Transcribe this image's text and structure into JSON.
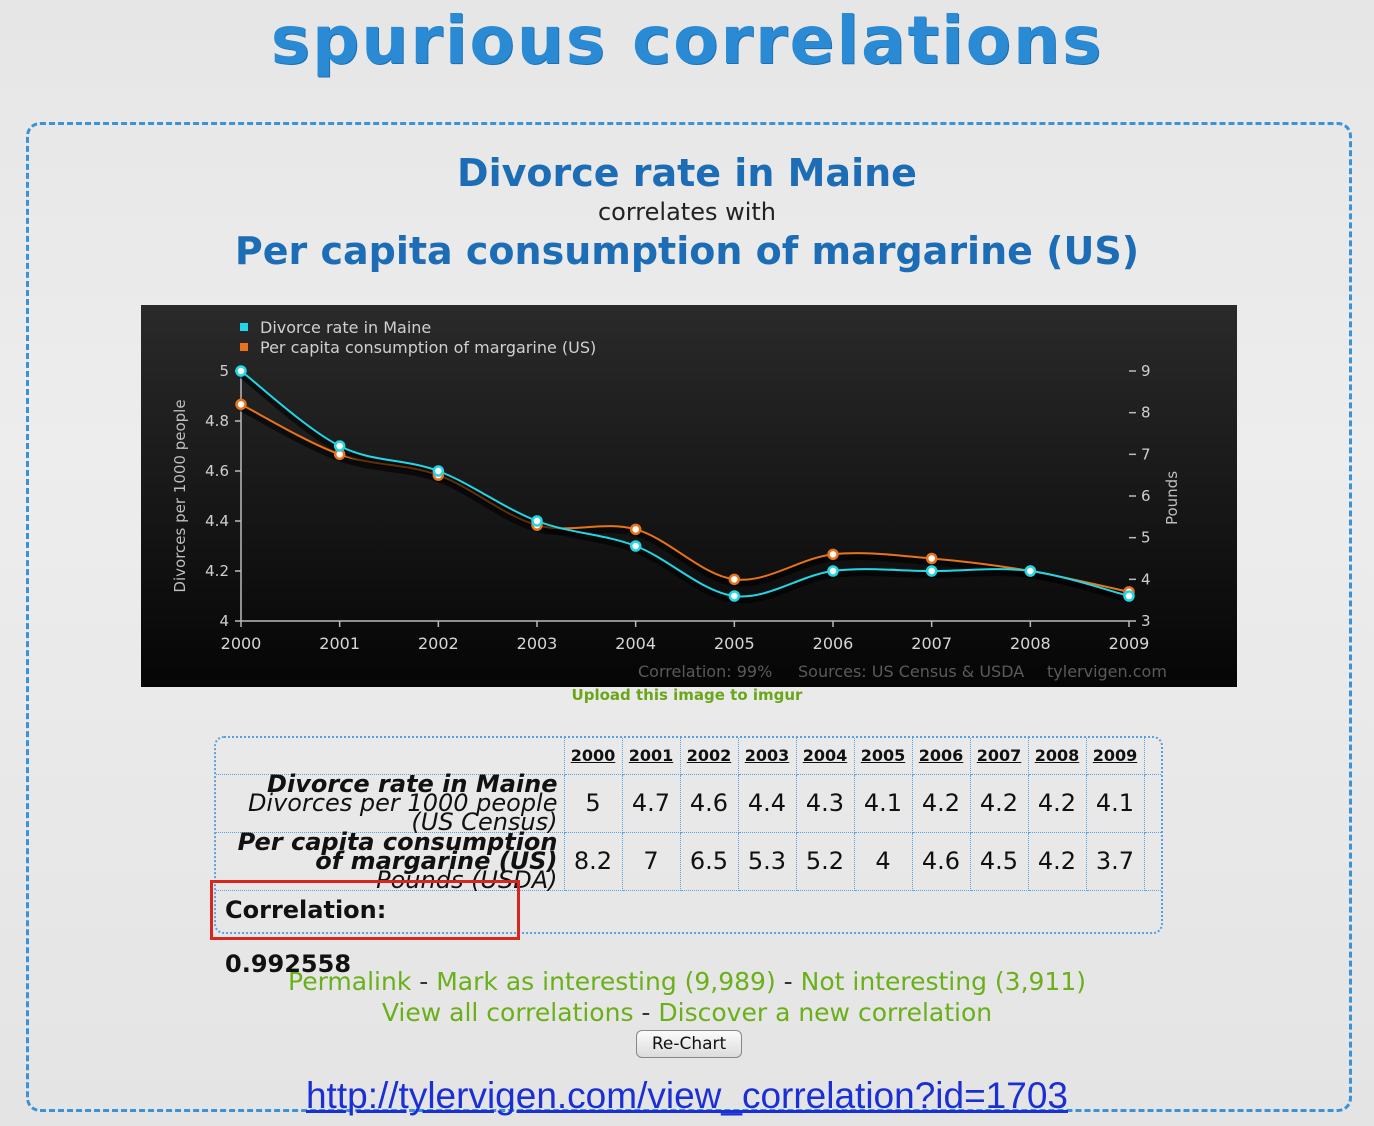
{
  "site": {
    "logo": "spurious correlations"
  },
  "heading": {
    "series1": "Divorce rate in Maine",
    "connector": "correlates with",
    "series2": "Per capita consumption of margarine (US)"
  },
  "chart_data": {
    "type": "line",
    "x": [
      2000,
      2001,
      2002,
      2003,
      2004,
      2005,
      2006,
      2007,
      2008,
      2009
    ],
    "series": [
      {
        "name": "Divorce rate in Maine",
        "axis": "left",
        "color": "#22d6e6",
        "values": [
          5,
          4.7,
          4.6,
          4.4,
          4.3,
          4.1,
          4.2,
          4.2,
          4.2,
          4.1
        ]
      },
      {
        "name": "Per capita consumption of margarine (US)",
        "axis": "right",
        "color": "#e8731a",
        "values": [
          8.2,
          7,
          6.5,
          5.3,
          5.2,
          4,
          4.6,
          4.5,
          4.2,
          3.7
        ]
      }
    ],
    "ylabel_left": "Divorces per 1000 people",
    "ylabel_right": "Pounds",
    "ylim_left": [
      4,
      5
    ],
    "ylim_right": [
      3,
      9
    ],
    "yticks_left": [
      "4",
      "4.2",
      "4.4",
      "4.6",
      "4.8",
      "5"
    ],
    "yticks_right": [
      "3",
      "4",
      "5",
      "6",
      "7",
      "8",
      "9"
    ],
    "legend_position": "top-left",
    "footer": {
      "correlation": "Correlation: 99%",
      "sources": "Sources: US Census & USDA",
      "site": "tylervigen.com"
    }
  },
  "upload_link": "Upload this image to imgur",
  "table": {
    "years": [
      "2000",
      "2001",
      "2002",
      "2003",
      "2004",
      "2005",
      "2006",
      "2007",
      "2008",
      "2009"
    ],
    "row1": {
      "title": "Divorce rate in Maine",
      "subtitle": "Divorces per 1000 people (US Census)",
      "values": [
        "5",
        "4.7",
        "4.6",
        "4.4",
        "4.3",
        "4.1",
        "4.2",
        "4.2",
        "4.2",
        "4.1"
      ]
    },
    "row2": {
      "title": "Per capita consumption of margarine (US)",
      "subtitle": "Pounds (USDA)",
      "values": [
        "8.2",
        "7",
        "6.5",
        "5.3",
        "5.2",
        "4",
        "4.6",
        "4.5",
        "4.2",
        "3.7"
      ]
    },
    "correlation": "Correlation: 0.992558"
  },
  "actions": {
    "permalink": "Permalink",
    "mark_interesting": "Mark as interesting (9,989)",
    "not_interesting": "Not interesting (3,911)",
    "view_all": "View all correlations",
    "discover": "Discover a new correlation",
    "separator": " - ",
    "rechart": "Re-Chart"
  },
  "url": "http://tylervigen.com/view_correlation?id=1703",
  "colors": {
    "accent": "#1c6cb6",
    "link": "#6ab018",
    "highlight": "#d8261f"
  }
}
